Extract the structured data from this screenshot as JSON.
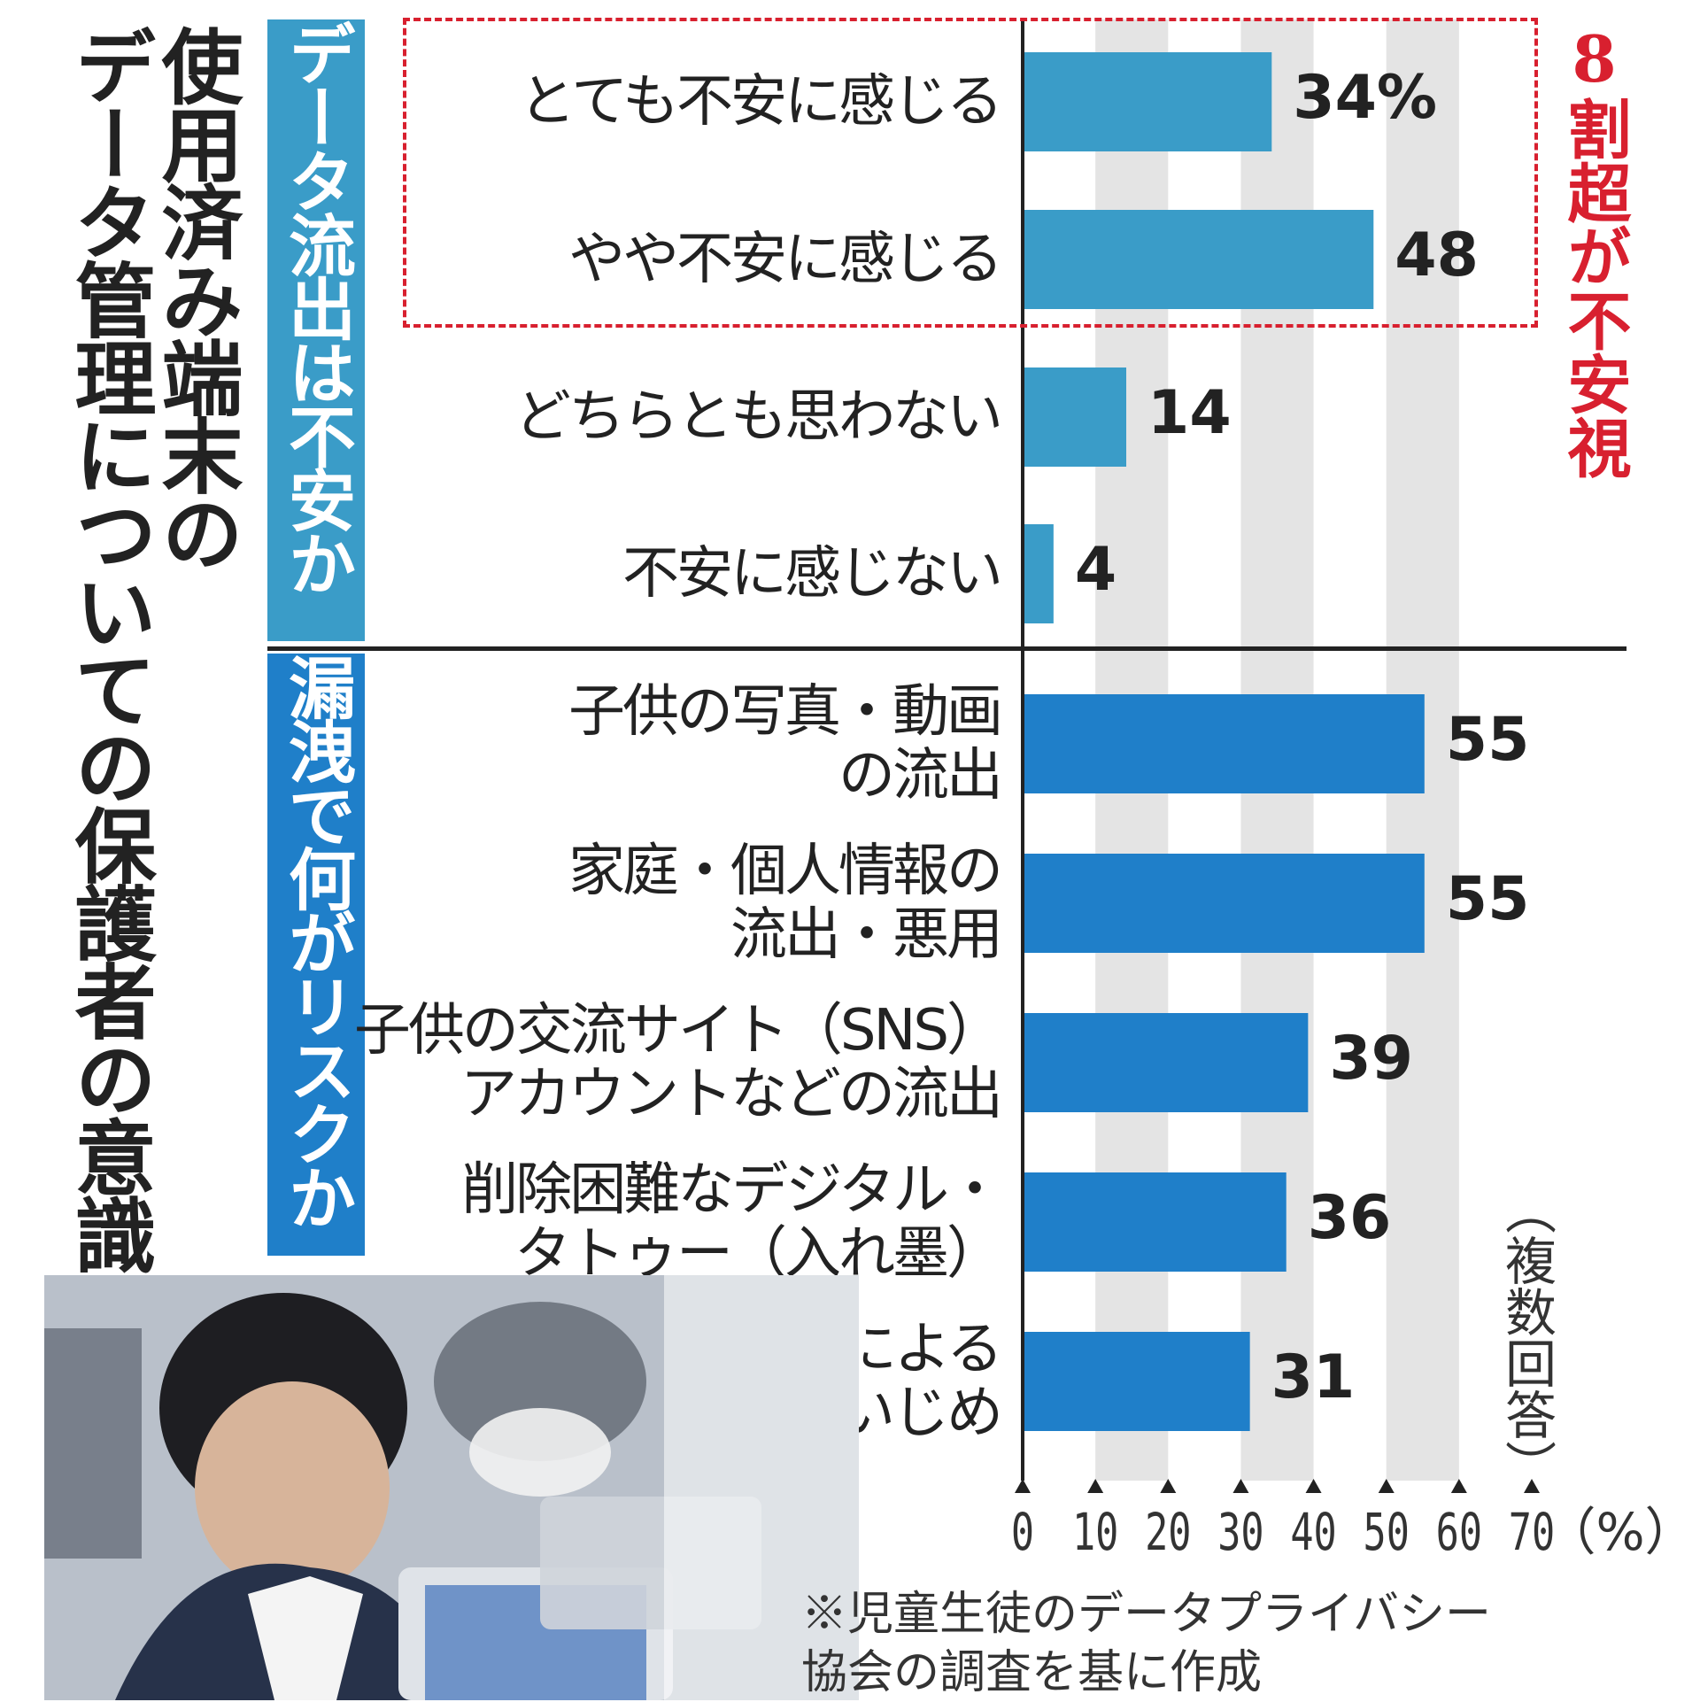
{
  "title": "使用済み端末のデータ管理についての保護者の意識",
  "title_lines": [
    "使用済み端末の",
    "データ管理についての保護者の意識"
  ],
  "section1_label": "データ流出は不安か",
  "section2_label": "漏洩で何がリスクか",
  "annotation": "8割超が不安視",
  "multiple_answer_note": "（複数回答）",
  "source_note": "※児童生徒のデータプライバシー\n協会の調査を基に作成",
  "colors": {
    "section1_bar": "#3a9cc8",
    "section2_bar": "#1f7fc9",
    "annotation_red": "#d8202f",
    "grid_band": "#e4e4e4"
  },
  "chart_data": {
    "type": "bar",
    "orientation": "horizontal",
    "xlim": [
      0,
      70
    ],
    "unit_label": "（%）",
    "xticks": [
      "0",
      "10",
      "20",
      "30",
      "40",
      "50",
      "60",
      "70"
    ],
    "grid": "alternating vertical bands",
    "groups": [
      {
        "label": "データ流出は不安か",
        "categories": [
          "とても不安に感じる",
          "やや不安に感じる",
          "どちらとも思わない",
          "不安に感じない"
        ],
        "values": [
          34,
          48,
          14,
          4
        ],
        "value_labels": [
          "34%",
          "48",
          "14",
          "4"
        ]
      },
      {
        "label": "漏洩で何がリスクか",
        "categories": [
          "子供の写真・動画\nの流出",
          "家庭・個人情報の\n流出・悪用",
          "子供の交流サイト（SNS）\nアカウントなどの流出",
          "削除困難なデジタル・\nタトゥー（入れ墨）",
          "漏洩による\n子供へのいじめ"
        ],
        "values": [
          55,
          55,
          39,
          36,
          31
        ],
        "value_labels": [
          "55",
          "55",
          "39",
          "36",
          "31"
        ]
      }
    ]
  }
}
